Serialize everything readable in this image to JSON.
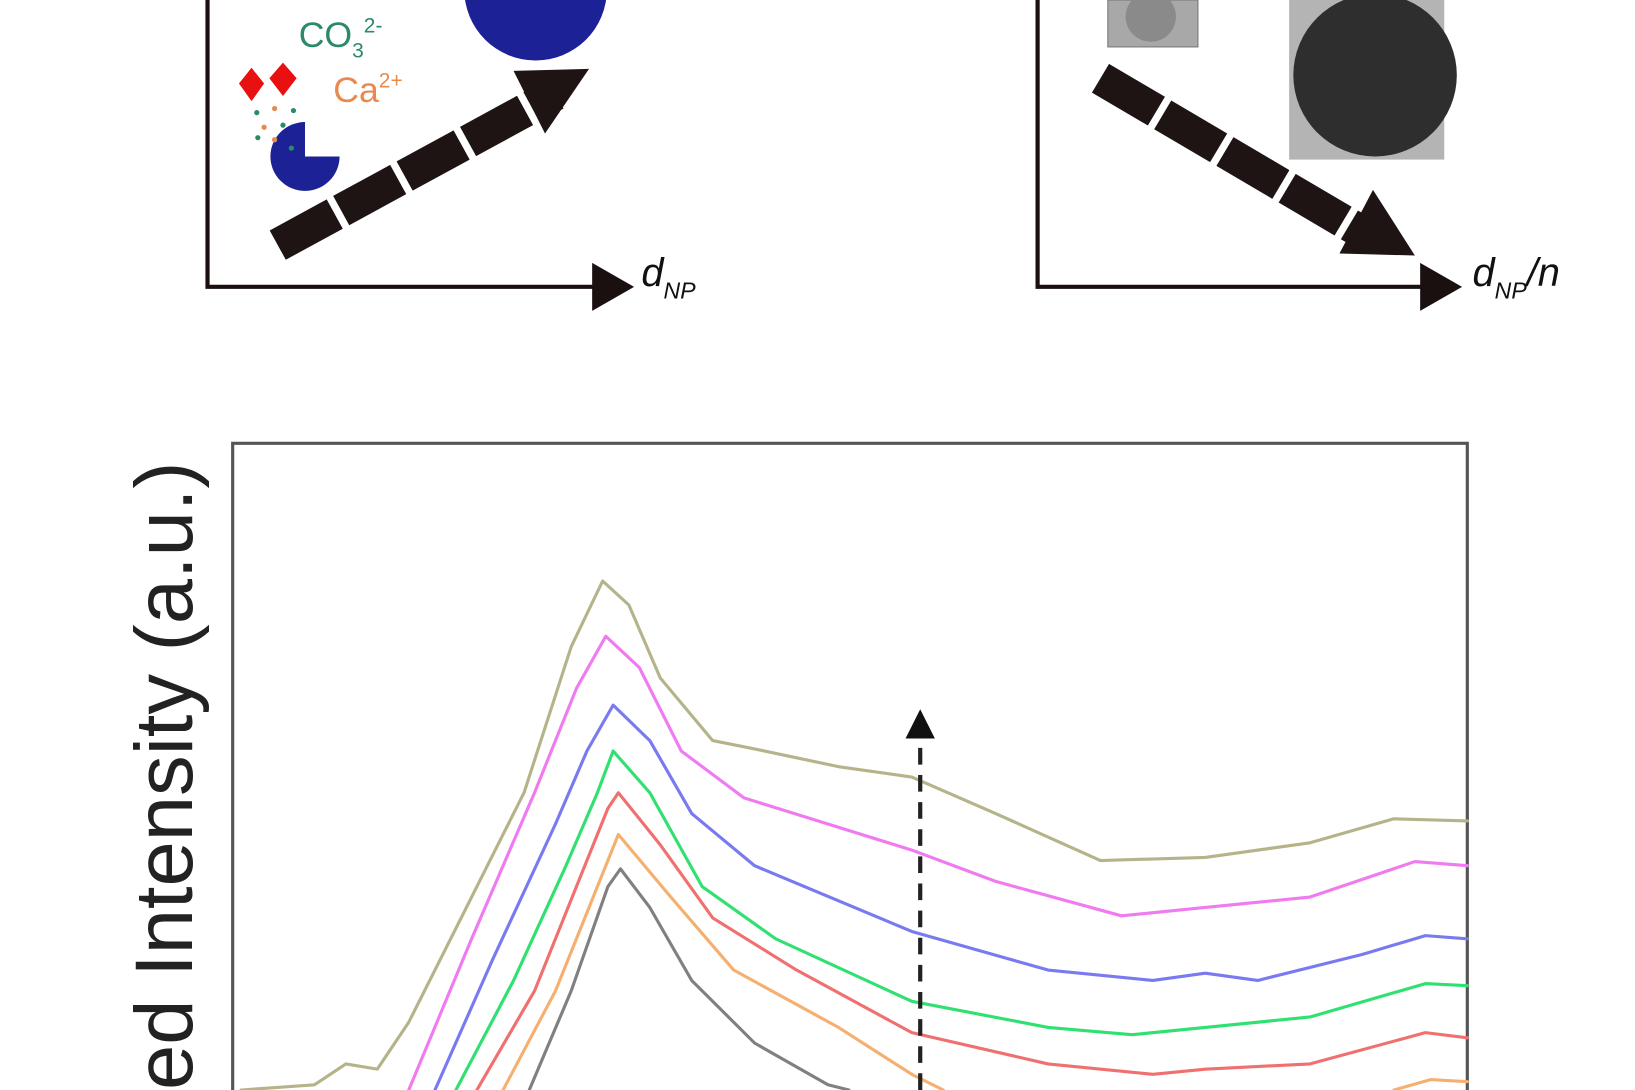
{
  "panel_a": {
    "carbonate": {
      "base": "CO",
      "sub": "3",
      "sup": "2-"
    },
    "calcium": {
      "base": "Ca",
      "sup": "2+"
    },
    "x_axis": {
      "base": "d",
      "sub": "NP"
    }
  },
  "panel_b": {
    "x_axis": {
      "base": "d",
      "sub": "NP",
      "tail": "/n"
    }
  },
  "panel_c": {
    "y_axis_label": "ed Intensity (a.u.)"
  }
}
